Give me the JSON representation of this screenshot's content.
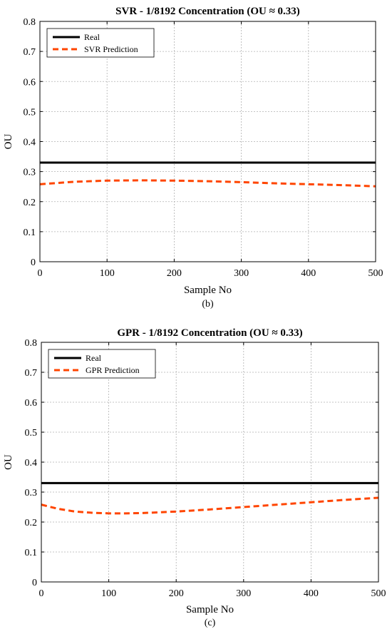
{
  "chart_data": [
    {
      "type": "line",
      "title": "SVR - 1/8192 Concentration (OU ≈ 0.33)",
      "xlabel": "Sample No",
      "ylabel": "OU",
      "caption": "(b)",
      "xlim": [
        0,
        500
      ],
      "ylim": [
        0,
        0.8
      ],
      "xticks": [
        0,
        100,
        200,
        300,
        400,
        500
      ],
      "yticks": [
        0,
        0.1,
        0.2,
        0.3,
        0.4,
        0.5,
        0.6,
        0.7,
        0.8
      ],
      "xtick_labels": [
        "0",
        "100",
        "200",
        "300",
        "400",
        "500"
      ],
      "ytick_labels": [
        "0",
        "0.1",
        "0.2",
        "0.3",
        "0.4",
        "0.5",
        "0.6",
        "0.7",
        "0.8"
      ],
      "grid": true,
      "legend": "top-left",
      "series": [
        {
          "name": "Real",
          "color": "#000000",
          "style": "solid",
          "x": [
            0,
            500
          ],
          "y": [
            0.33,
            0.33
          ]
        },
        {
          "name": "SVR Prediction",
          "color": "#ff4500",
          "style": "dashed",
          "x": [
            0,
            25,
            50,
            100,
            150,
            200,
            250,
            300,
            350,
            400,
            450,
            500
          ],
          "y": [
            0.258,
            0.262,
            0.266,
            0.27,
            0.271,
            0.27,
            0.268,
            0.265,
            0.261,
            0.258,
            0.255,
            0.251
          ]
        }
      ]
    },
    {
      "type": "line",
      "title": "GPR - 1/8192 Concentration (OU ≈ 0.33)",
      "xlabel": "Sample No",
      "ylabel": "OU",
      "caption": "(c)",
      "xlim": [
        0,
        500
      ],
      "ylim": [
        0,
        0.8
      ],
      "xticks": [
        0,
        100,
        200,
        300,
        400,
        500
      ],
      "yticks": [
        0,
        0.1,
        0.2,
        0.3,
        0.4,
        0.5,
        0.6,
        0.7,
        0.8
      ],
      "xtick_labels": [
        "0",
        "100",
        "200",
        "300",
        "400",
        "500"
      ],
      "ytick_labels": [
        "0",
        "0.1",
        "0.2",
        "0.3",
        "0.4",
        "0.5",
        "0.6",
        "0.7",
        "0.8"
      ],
      "grid": true,
      "legend": "top-left",
      "series": [
        {
          "name": "Real",
          "color": "#000000",
          "style": "solid",
          "x": [
            0,
            500
          ],
          "y": [
            0.33,
            0.33
          ]
        },
        {
          "name": "GPR Prediction",
          "color": "#ff4500",
          "style": "dashed",
          "x": [
            0,
            25,
            50,
            75,
            100,
            125,
            150,
            200,
            250,
            300,
            350,
            400,
            450,
            500
          ],
          "y": [
            0.258,
            0.244,
            0.235,
            0.231,
            0.229,
            0.229,
            0.23,
            0.235,
            0.242,
            0.25,
            0.258,
            0.266,
            0.274,
            0.281
          ]
        }
      ]
    }
  ]
}
